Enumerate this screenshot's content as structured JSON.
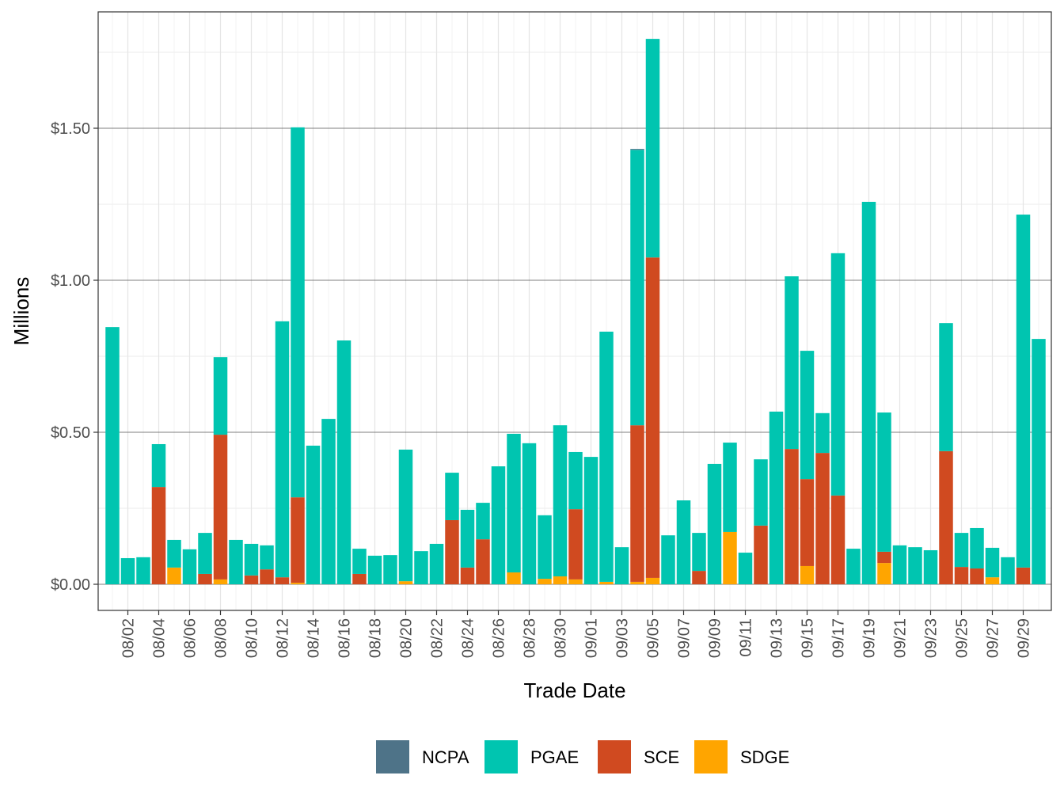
{
  "chart_data": {
    "type": "bar",
    "stacked": true,
    "xlabel": "Trade Date",
    "ylabel": "Millions",
    "ylim": [
      -0.085,
      1.88
    ],
    "yticks": [
      0,
      0.5,
      1.0,
      1.5
    ],
    "ytick_labels": [
      "$0.00",
      "$0.50",
      "$1.00",
      "$1.50"
    ],
    "grid": true,
    "legend_position": "bottom",
    "categories": [
      "08/01",
      "08/02",
      "08/03",
      "08/04",
      "08/05",
      "08/06",
      "08/07",
      "08/08",
      "08/09",
      "08/10",
      "08/11",
      "08/12",
      "08/13",
      "08/14",
      "08/15",
      "08/16",
      "08/17",
      "08/18",
      "08/19",
      "08/20",
      "08/21",
      "08/22",
      "08/23",
      "08/24",
      "08/25",
      "08/26",
      "08/27",
      "08/28",
      "08/29",
      "08/30",
      "08/31",
      "09/01",
      "09/02",
      "09/03",
      "09/04",
      "09/05",
      "09/06",
      "09/07",
      "09/08",
      "09/09",
      "09/10",
      "09/11",
      "09/12",
      "09/13",
      "09/14",
      "09/15",
      "09/16",
      "09/17",
      "09/18",
      "09/19",
      "09/20",
      "09/21",
      "09/22",
      "09/23",
      "09/24",
      "09/25",
      "09/26",
      "09/27",
      "09/28",
      "09/29",
      "09/30"
    ],
    "xtick_labels": [
      "08/02",
      "08/04",
      "08/06",
      "08/08",
      "08/10",
      "08/12",
      "08/14",
      "08/16",
      "08/18",
      "08/20",
      "08/22",
      "08/24",
      "08/26",
      "08/28",
      "08/30",
      "09/01",
      "09/03",
      "09/05",
      "09/07",
      "09/09",
      "09/11",
      "09/13",
      "09/15",
      "09/17",
      "09/19",
      "09/21",
      "09/23",
      "09/25",
      "09/27",
      "09/29"
    ],
    "series": [
      {
        "name": "SDGE",
        "color": "#FFA500",
        "values": [
          0,
          0,
          0,
          0,
          0.055,
          0,
          0,
          0.016,
          0,
          0,
          0,
          0,
          0.005,
          0,
          0,
          0,
          0,
          0,
          0,
          0.01,
          0,
          0,
          0,
          0,
          0,
          0,
          0.039,
          0,
          0.018,
          0.026,
          0.016,
          0,
          0.008,
          0,
          0.008,
          0.021,
          0,
          0,
          0,
          0,
          0.172,
          0,
          0,
          0,
          0,
          0.06,
          0,
          0,
          0,
          0,
          0.07,
          0,
          0,
          0,
          0,
          0,
          0,
          0.023,
          0,
          0,
          0
        ]
      },
      {
        "name": "SCE",
        "color": "#D04A20",
        "values": [
          0,
          0,
          0,
          0.32,
          0,
          0,
          0.034,
          0.476,
          0,
          0.029,
          0.049,
          0.023,
          0.281,
          0,
          0,
          0,
          0.034,
          0,
          0,
          0,
          0,
          0,
          0.211,
          0.055,
          0.148,
          0,
          0,
          0,
          0,
          0,
          0.231,
          0,
          0,
          0,
          0.515,
          1.054,
          0,
          0,
          0.044,
          0,
          0,
          0,
          0.193,
          0,
          0.445,
          0.286,
          0.432,
          0.292,
          0,
          0,
          0.037,
          0,
          0,
          0,
          0.438,
          0.057,
          0.052,
          0,
          0,
          0.055,
          0
        ]
      },
      {
        "name": "PGAE",
        "color": "#00C5B0",
        "values": [
          0.846,
          0.086,
          0.089,
          0.141,
          0.091,
          0.115,
          0.135,
          0.255,
          0.146,
          0.104,
          0.079,
          0.842,
          1.217,
          0.456,
          0.544,
          0.802,
          0.083,
          0.094,
          0.096,
          0.433,
          0.109,
          0.133,
          0.156,
          0.19,
          0.12,
          0.388,
          0.456,
          0.464,
          0.209,
          0.497,
          0.188,
          0.419,
          0.823,
          0.122,
          0.906,
          0.719,
          0.161,
          0.276,
          0.125,
          0.396,
          0.294,
          0.104,
          0.218,
          0.568,
          0.568,
          0.422,
          0.131,
          0.797,
          0.117,
          1.258,
          0.458,
          0.128,
          0.122,
          0.112,
          0.421,
          0.112,
          0.133,
          0.097,
          0.089,
          1.161,
          0.807
        ]
      },
      {
        "name": "NCPA",
        "color": "#4E7388",
        "values": [
          0,
          0,
          0,
          0,
          0,
          0,
          0,
          0,
          0,
          0,
          0,
          0,
          0,
          0,
          0,
          0,
          0,
          0,
          0,
          0,
          0,
          0,
          0,
          0,
          0,
          0,
          0,
          0,
          0,
          0,
          0,
          0,
          0,
          0,
          0.003,
          0,
          0,
          0,
          0,
          0,
          0,
          0,
          0,
          0,
          0,
          0,
          0,
          0,
          0,
          0,
          0,
          0,
          0,
          0,
          0,
          0,
          0,
          0,
          0,
          0,
          0
        ]
      }
    ],
    "legend": [
      "NCPA",
      "PGAE",
      "SCE",
      "SDGE"
    ]
  }
}
